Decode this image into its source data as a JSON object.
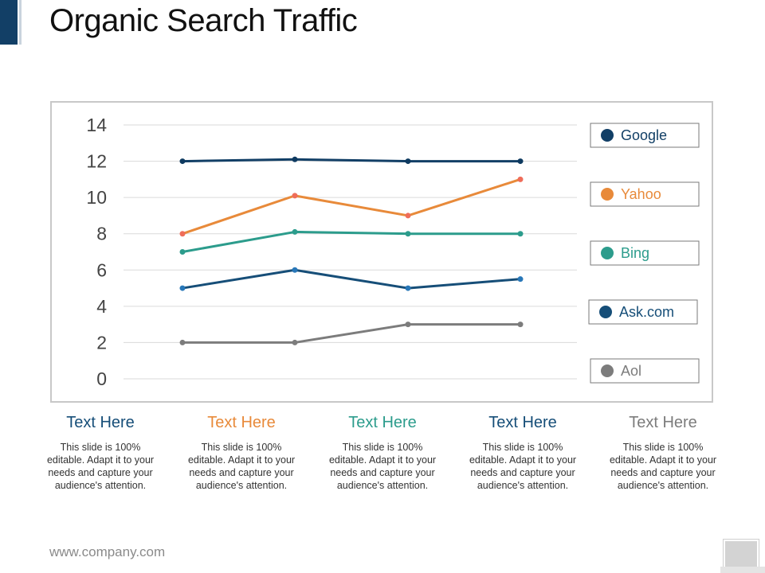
{
  "slide": {
    "title": "Organic Search Traffic",
    "footer": "www.company.com"
  },
  "colors": {
    "google": "#123f66",
    "yahoo": "#e88a3a",
    "bing": "#2c9c8c",
    "ask": "#164e78",
    "aol": "#7c7c7c"
  },
  "chart_data": {
    "type": "line",
    "x": [
      1,
      2,
      3,
      4
    ],
    "ylim": [
      0,
      14
    ],
    "yticks": [
      0,
      2,
      4,
      6,
      8,
      10,
      12,
      14
    ],
    "grid": true,
    "legend_position": "right",
    "series": [
      {
        "name": "Google",
        "values": [
          12,
          12.1,
          12,
          12
        ],
        "color": "#123f66",
        "marker": "#0e3a60"
      },
      {
        "name": "Yahoo",
        "values": [
          8,
          10.1,
          9,
          11
        ],
        "color": "#e88a3a",
        "marker": "#ef6d5a"
      },
      {
        "name": "Bing",
        "values": [
          7,
          8.1,
          8,
          8
        ],
        "color": "#2c9c8c",
        "marker": "#2c9c8c"
      },
      {
        "name": "Ask.com",
        "values": [
          5,
          6,
          5,
          5.5
        ],
        "color": "#164e78",
        "marker": "#2877b8"
      },
      {
        "name": "Aol",
        "values": [
          2,
          2,
          3,
          3
        ],
        "color": "#7c7c7c",
        "marker": "#7c7c7c"
      }
    ]
  },
  "columns": [
    {
      "title": "Text Here",
      "color": "#164e78",
      "body": "This slide is 100% editable. Adapt it to your needs and capture your audience's attention."
    },
    {
      "title": "Text Here",
      "color": "#e88a3a",
      "body": "This slide is 100% editable. Adapt it to your needs and capture your audience's attention."
    },
    {
      "title": "Text Here",
      "color": "#2c9c8c",
      "body": "This slide is 100% editable. Adapt it to your needs and capture your audience's attention."
    },
    {
      "title": "Text Here",
      "color": "#164e78",
      "body": "This slide is 100% editable. Adapt it to your needs and capture your audience's attention."
    },
    {
      "title": "Text Here",
      "color": "#7c7c7c",
      "body": "This slide is 100% editable. Adapt it to your needs and capture your audience's attention."
    }
  ]
}
